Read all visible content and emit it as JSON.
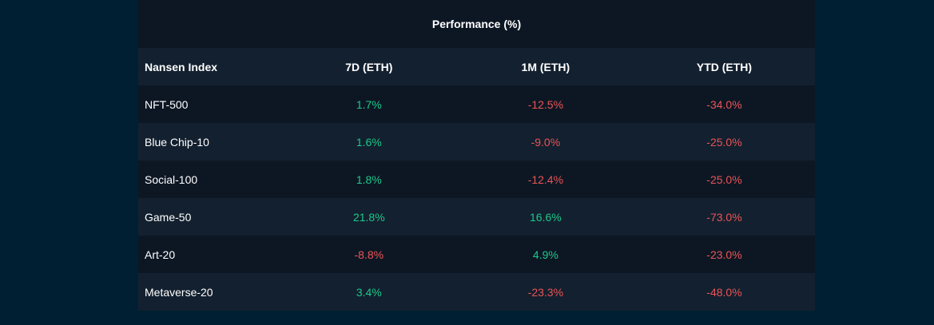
{
  "table": {
    "title": "Performance (%)",
    "columns": [
      "Nansen Index",
      "7D (ETH)",
      "1M (ETH)",
      "YTD (ETH)"
    ],
    "rows": [
      [
        "NFT-500",
        "1.7%",
        "-12.5%",
        "-34.0%"
      ],
      [
        "Blue Chip-10",
        "1.6%",
        "-9.0%",
        "-25.0%"
      ],
      [
        "Social-100",
        "1.8%",
        "-12.4%",
        "-25.0%"
      ],
      [
        "Game-50",
        "21.8%",
        "16.6%",
        "-73.0%"
      ],
      [
        "Art-20",
        "-8.8%",
        "4.9%",
        "-23.0%"
      ],
      [
        "Metaverse-20",
        "3.4%",
        "-23.3%",
        "-48.0%"
      ]
    ]
  },
  "colors": {
    "page_background": "#011f33",
    "row_dark": "#0d1724",
    "row_light": "#13202f",
    "positive": "#1dc88a",
    "negative": "#ea5455",
    "text": "#ffffff"
  },
  "chart_data": {
    "type": "table",
    "title": "Performance (%)",
    "columns": [
      "Nansen Index",
      "7D (ETH)",
      "1M (ETH)",
      "YTD (ETH)"
    ],
    "rows": [
      [
        "NFT-500",
        1.7,
        -12.5,
        -34.0
      ],
      [
        "Blue Chip-10",
        1.6,
        -9.0,
        -25.0
      ],
      [
        "Social-100",
        1.8,
        -12.4,
        -25.0
      ],
      [
        "Game-50",
        21.8,
        16.6,
        -73.0
      ],
      [
        "Art-20",
        -8.8,
        4.9,
        -23.0
      ],
      [
        "Metaverse-20",
        3.4,
        -23.3,
        -48.0
      ]
    ],
    "units": "percent",
    "value_color_rule": "negative values red, positive values green"
  }
}
